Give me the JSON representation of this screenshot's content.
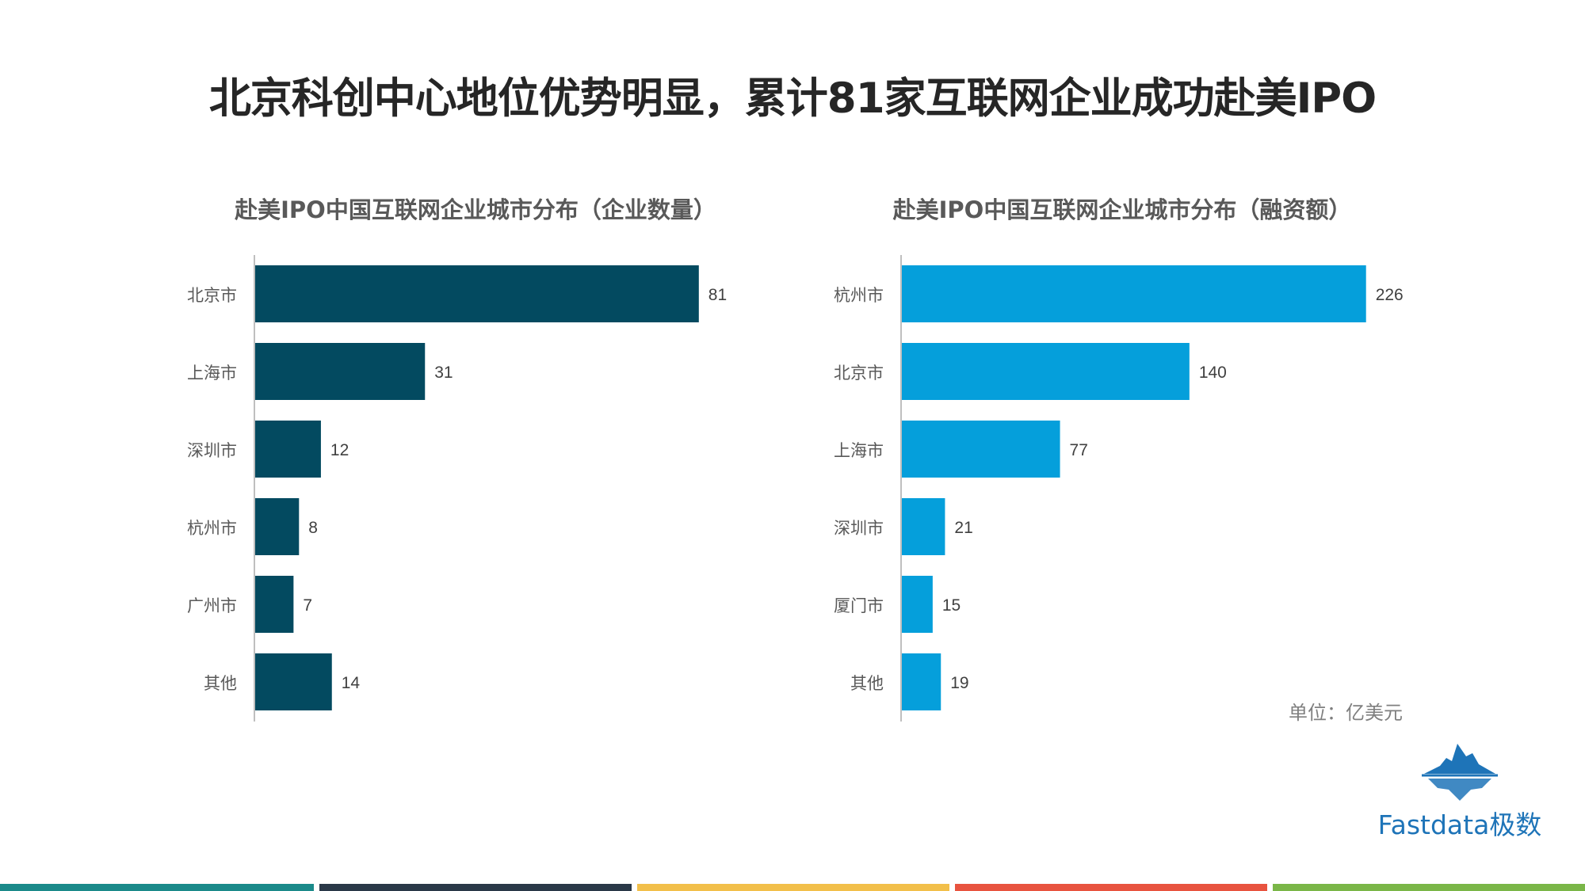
{
  "title": "北京科创中心地位优势明显，累计81家互联网企业成功赴美IPO",
  "unit_note": "单位：亿美元",
  "logo_text": "Fastdata极数",
  "footer_colors": [
    "#1b8a8a",
    "#2a3848",
    "#f2bf4a",
    "#e8533f",
    "#7ab648"
  ],
  "chart_data": [
    {
      "type": "bar",
      "orientation": "horizontal",
      "title": "赴美IPO中国互联网企业城市分布（企业数量）",
      "categories": [
        "北京市",
        "上海市",
        "深圳市",
        "杭州市",
        "广州市",
        "其他"
      ],
      "values": [
        81,
        31,
        12,
        8,
        7,
        14
      ],
      "xlim": [
        0,
        90
      ],
      "color": "#034a60",
      "grid": false,
      "legend": "none"
    },
    {
      "type": "bar",
      "orientation": "horizontal",
      "title": "赴美IPO中国互联网企业城市分布（融资额）",
      "categories": [
        "杭州市",
        "北京市",
        "上海市",
        "深圳市",
        "厦门市",
        "其他"
      ],
      "values": [
        226,
        140,
        77,
        21,
        15,
        19
      ],
      "xlim": [
        0,
        240
      ],
      "color": "#059fdb",
      "grid": false,
      "legend": "none"
    }
  ]
}
